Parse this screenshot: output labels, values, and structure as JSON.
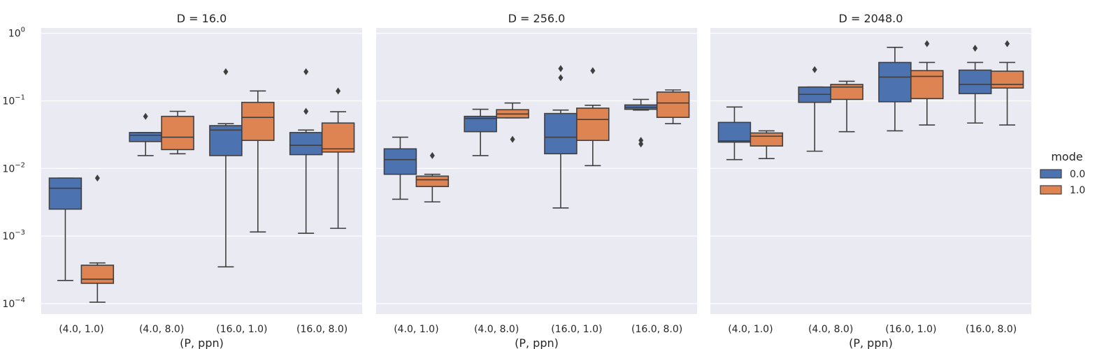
{
  "chart_data": {
    "type": "box",
    "shared_y": {
      "scale": "log",
      "ylim": [
        7e-05,
        1.2
      ],
      "tick_values": [
        0.0001,
        0.001,
        0.01,
        0.1,
        1
      ],
      "tick_exponents": [
        "−4",
        "−3",
        "−2",
        "−1",
        "0"
      ],
      "tick_base": "10",
      "grid": true
    },
    "xlabel": "(P, ppn)",
    "categories": [
      "(4.0, 1.0)",
      "(4.0, 8.0)",
      "(16.0, 1.0)",
      "(16.0, 8.0)"
    ],
    "legend": {
      "title": "mode",
      "placement": "right",
      "entries": [
        {
          "label": "0.0",
          "color": "#4c72b0"
        },
        {
          "label": "1.0",
          "color": "#dd8452"
        }
      ]
    },
    "panels": [
      {
        "title": "D = 16.0",
        "groups": [
          [
            {
              "q1": 0.0025,
              "median": 0.0051,
              "q3": 0.0072,
              "whislo": 0.00022,
              "whishi": 0.0072,
              "fliers": []
            },
            {
              "q1": 0.0002,
              "median": 0.00023,
              "q3": 0.00037,
              "whislo": 0.000105,
              "whishi": 0.0004,
              "fliers": [
                0.0072
              ]
            }
          ],
          [
            {
              "q1": 0.025,
              "median": 0.031,
              "q3": 0.034,
              "whislo": 0.0155,
              "whishi": 0.034,
              "fliers": [
                0.059
              ]
            },
            {
              "q1": 0.019,
              "median": 0.029,
              "q3": 0.059,
              "whislo": 0.0165,
              "whishi": 0.07,
              "fliers": []
            }
          ],
          [
            {
              "q1": 0.0155,
              "median": 0.037,
              "q3": 0.043,
              "whislo": 0.00035,
              "whishi": 0.046,
              "fliers": [
                0.27
              ]
            },
            {
              "q1": 0.026,
              "median": 0.057,
              "q3": 0.095,
              "whislo": 0.00115,
              "whishi": 0.14,
              "fliers": []
            }
          ],
          [
            {
              "q1": 0.016,
              "median": 0.022,
              "q3": 0.034,
              "whislo": 0.0011,
              "whishi": 0.037,
              "fliers": [
                0.07,
                0.27
              ]
            },
            {
              "q1": 0.0175,
              "median": 0.0195,
              "q3": 0.047,
              "whislo": 0.0013,
              "whishi": 0.069,
              "fliers": [
                0.14
              ]
            }
          ]
        ]
      },
      {
        "title": "D = 256.0",
        "groups": [
          [
            {
              "q1": 0.0082,
              "median": 0.0135,
              "q3": 0.0195,
              "whislo": 0.0035,
              "whishi": 0.029,
              "fliers": []
            },
            {
              "q1": 0.0054,
              "median": 0.0068,
              "q3": 0.0077,
              "whislo": 0.0032,
              "whishi": 0.0082,
              "fliers": [
                0.0155
              ]
            }
          ],
          [
            {
              "q1": 0.035,
              "median": 0.055,
              "q3": 0.059,
              "whislo": 0.0155,
              "whishi": 0.075,
              "fliers": []
            },
            {
              "q1": 0.056,
              "median": 0.064,
              "q3": 0.074,
              "whislo": 0.056,
              "whishi": 0.093,
              "fliers": [
                0.027
              ]
            }
          ],
          [
            {
              "q1": 0.0165,
              "median": 0.029,
              "q3": 0.065,
              "whislo": 0.0026,
              "whishi": 0.073,
              "fliers": [
                0.22,
                0.3
              ]
            },
            {
              "q1": 0.026,
              "median": 0.053,
              "q3": 0.078,
              "whislo": 0.011,
              "whishi": 0.086,
              "fliers": [
                0.28
              ]
            }
          ],
          [
            {
              "q1": 0.075,
              "median": 0.08,
              "q3": 0.087,
              "whislo": 0.073,
              "whishi": 0.105,
              "fliers": [
                0.023,
                0.026
              ]
            },
            {
              "q1": 0.057,
              "median": 0.093,
              "q3": 0.135,
              "whislo": 0.046,
              "whishi": 0.145,
              "fliers": []
            }
          ]
        ]
      },
      {
        "title": "D = 2048.0",
        "groups": [
          [
            {
              "q1": 0.0245,
              "median": 0.0255,
              "q3": 0.048,
              "whislo": 0.0135,
              "whishi": 0.081,
              "fliers": []
            },
            {
              "q1": 0.0215,
              "median": 0.03,
              "q3": 0.0335,
              "whislo": 0.014,
              "whishi": 0.036,
              "fliers": []
            }
          ],
          [
            {
              "q1": 0.095,
              "median": 0.125,
              "q3": 0.16,
              "whislo": 0.018,
              "whishi": 0.16,
              "fliers": [
                0.29
              ]
            },
            {
              "q1": 0.105,
              "median": 0.16,
              "q3": 0.175,
              "whislo": 0.035,
              "whishi": 0.195,
              "fliers": []
            }
          ],
          [
            {
              "q1": 0.097,
              "median": 0.225,
              "q3": 0.37,
              "whislo": 0.036,
              "whishi": 0.62,
              "fliers": []
            },
            {
              "q1": 0.108,
              "median": 0.23,
              "q3": 0.28,
              "whislo": 0.044,
              "whishi": 0.37,
              "fliers": [
                0.7
              ]
            }
          ],
          [
            {
              "q1": 0.128,
              "median": 0.175,
              "q3": 0.285,
              "whislo": 0.047,
              "whishi": 0.37,
              "fliers": [
                0.6
              ]
            },
            {
              "q1": 0.155,
              "median": 0.175,
              "q3": 0.275,
              "whislo": 0.044,
              "whishi": 0.37,
              "fliers": [
                0.7
              ]
            }
          ]
        ]
      }
    ]
  }
}
